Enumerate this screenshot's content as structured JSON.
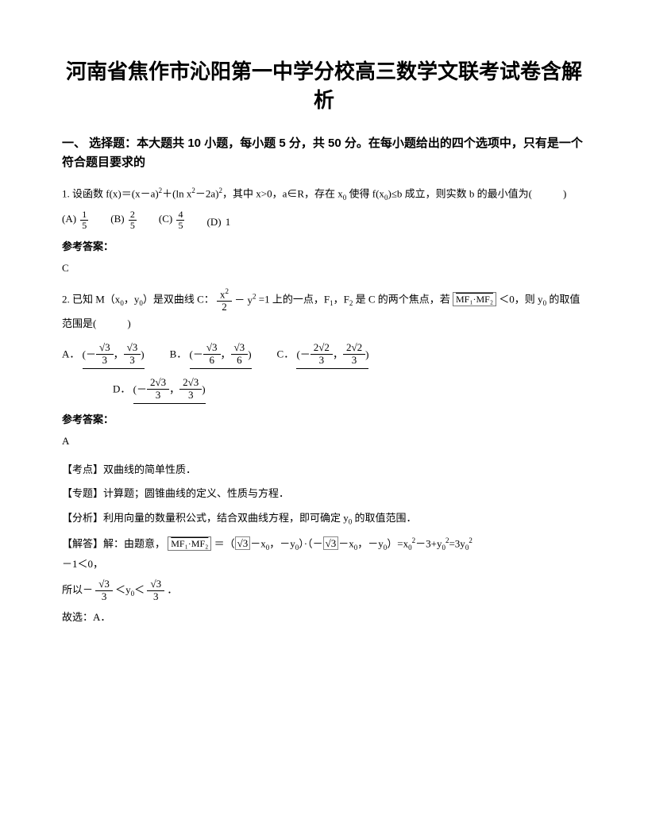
{
  "title": "河南省焦作市沁阳第一中学分校高三数学文联考试卷含解析",
  "section1_head": "一、 选择题：本大题共 10 小题，每小题 5 分，共 50 分。在每小题给出的四个选项中，只有是一个符合题目要求的",
  "q1": {
    "stem_prefix": "1. 设函数 f(x)＝(x－a)",
    "stem_mid1": "＋(ln x",
    "stem_mid2": "－2a)",
    "stem_suffix": "，其中 x>0，a∈R，存在 x",
    "stem_tail": " 使得 f(x",
    "stem_end": ")≤b 成立，则实数 b 的最小值为(　　　)",
    "optA_label": "(A)",
    "optA_num": "1",
    "optA_den": "5",
    "optB_label": "(B)",
    "optB_num": "2",
    "optB_den": "5",
    "optC_label": "(C)",
    "optC_num": "4",
    "optC_den": "5",
    "optD_label": "(D)",
    "optD_val": "1",
    "ans_label": "参考答案：",
    "ans": "C"
  },
  "q2": {
    "stem_a": "2. 已知 M（x",
    "stem_b": "，y",
    "stem_c": "）是双曲线 C：",
    "eq_num": "x",
    "eq_numr": "2",
    "eq_den": "2",
    "eq_after": "－ y",
    "stem_d": "=1 上的一点，F",
    "stem_e": "，F",
    "stem_f": " 是 C 的两个焦点，若",
    "vec_text": "MF₁·MF₂",
    "stem_g": "＜0，则 y",
    "stem_h": " 的取值范围是(　　　)",
    "optA": "A．",
    "optB": "B．",
    "optC": "C．",
    "optD": "D．",
    "A_neg": "－",
    "A_num": "√3",
    "A_den": "3",
    "B_num": "√3",
    "B_den": "6",
    "C_num": "2√2",
    "C_den": "3",
    "D_num": "2√3",
    "D_den": "3",
    "ans_label": "参考答案：",
    "ans": "A",
    "tag_point": "【考点】双曲线的简单性质．",
    "tag_topic": "【专题】计算题；圆锥曲线的定义、性质与方程．",
    "tag_analysis": "【分析】利用向量的数量积公式，结合双曲线方程，即可确定 y",
    "tag_analysis2": " 的取值范围．",
    "sol_a": "【解答】解：由题意，",
    "sol_vec": "MF₁·MF₂",
    "sol_b": "＝（",
    "sqrt3a": "√3",
    "sol_c": "－x",
    "sol_d": "，－y",
    "sol_e": "）·（－",
    "sqrt3b": "√3",
    "sol_f": "－x",
    "sol_g": "，－y",
    "sol_h": "）=x",
    "sol_i": "－3+y",
    "sol_j": "=3y",
    "sol_k": "－1＜0，",
    "so_a": "所以－",
    "so_num": "√3",
    "so_den": "3",
    "so_b": "＜y",
    "so_c": "＜",
    "so_d": "．",
    "pick": "故选：A．"
  }
}
